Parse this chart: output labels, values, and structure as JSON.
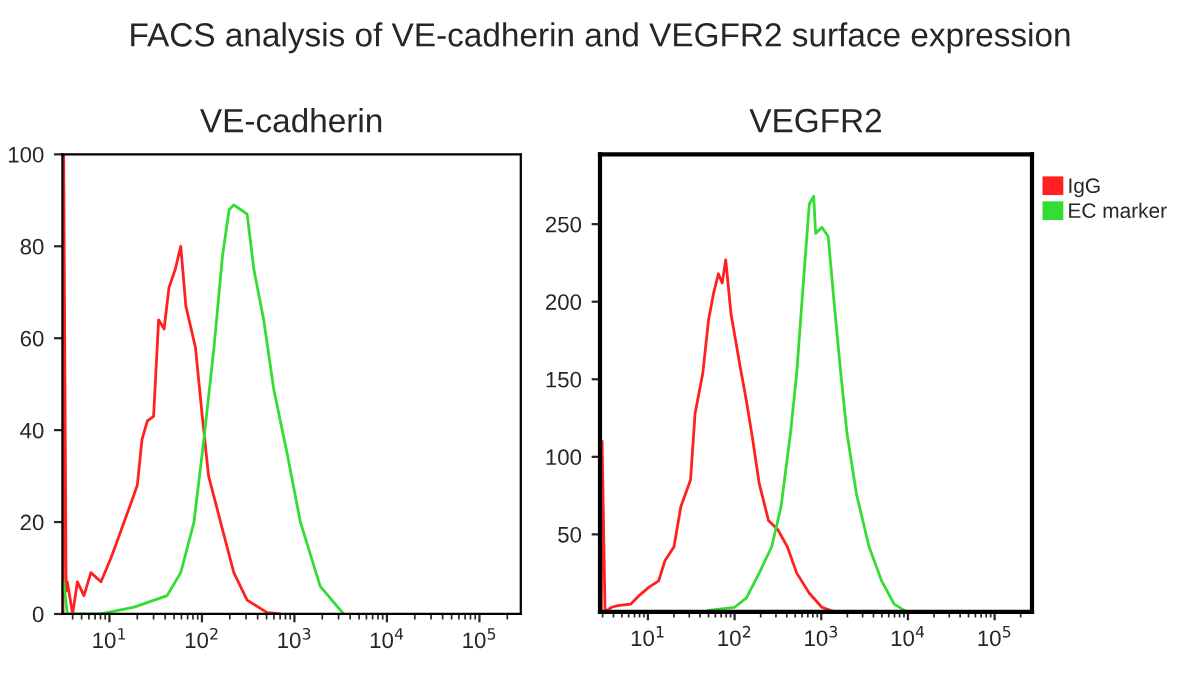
{
  "chart_data": [
    {
      "type": "line",
      "title": "VE-cadherin",
      "annotations": [
        "FACS analysis of VE-cadherin and VEGFR2 surface expression"
      ],
      "log": "x",
      "grid": false,
      "legend": false,
      "xlim": [
        3.1,
        280000
      ],
      "xticks": [
        {
          "value": 10,
          "label": "10$^{1}$"
        },
        {
          "value": 100,
          "label": "10$^{2}$"
        },
        {
          "value": 1000,
          "label": "10$^{3}$"
        },
        {
          "value": 10000,
          "label": "10$^{4}$"
        },
        {
          "value": 100000,
          "label": "10$^{5}$"
        }
      ],
      "ylim": [
        0,
        100
      ],
      "yticks": [
        0,
        20,
        40,
        60,
        80,
        100
      ],
      "series": [
        {
          "color": "#ff2020",
          "x": [
            3.15,
            3.2,
            3.4,
            3.5,
            4.0,
            4.5,
            5.3,
            6.3,
            8.1,
            10.3,
            12.2,
            14.4,
            17,
            20,
            22.5,
            25.7,
            30,
            34,
            39,
            44,
            51.5,
            59,
            67,
            85,
            102,
            118,
            159,
            221,
            308,
            507,
            706
          ],
          "values": [
            0,
            100,
            5,
            7,
            0,
            7,
            4,
            9,
            7,
            12,
            16,
            20,
            24,
            28,
            38,
            42,
            43,
            64,
            62,
            71,
            75,
            80,
            67,
            58,
            42,
            30,
            20,
            9,
            3,
            0.3,
            0
          ]
        },
        {
          "color": "#33dd33",
          "x": [
            3.2,
            3.5,
            8.1,
            18.5,
            42,
            59,
            82,
            105,
            135,
            167,
            197,
            221,
            261,
            308,
            364,
            465,
            596,
            832,
            1160,
            1900,
            3400
          ],
          "values": [
            7,
            0,
            0,
            1.5,
            4,
            9,
            20,
            38,
            58,
            78,
            88,
            89,
            88,
            87,
            75,
            64,
            49,
            35,
            20,
            6,
            0
          ]
        }
      ]
    },
    {
      "type": "line",
      "title": "VEGFR2",
      "log": "x",
      "grid": false,
      "legend": "top right",
      "xlim": [
        2.8,
        270000
      ],
      "xticks": [
        {
          "value": 10,
          "label": "10$^{1}$"
        },
        {
          "value": 100,
          "label": "10$^{2}$"
        },
        {
          "value": 1000,
          "label": "10$^{3}$"
        },
        {
          "value": 10000,
          "label": "10$^{4}$"
        },
        {
          "value": 100000,
          "label": "10$^{5}$"
        }
      ],
      "ylim": [
        0,
        295
      ],
      "yticks": [
        50,
        100,
        150,
        200,
        250
      ],
      "series": [
        {
          "name": "IgG",
          "color": "#ff2020",
          "x": [
            2.9,
            2.96,
            3.2,
            3.8,
            4.5,
            6.3,
            8.1,
            10.3,
            13.3,
            15.7,
            20,
            24,
            31,
            35,
            43,
            50,
            57,
            65,
            72,
            79,
            91,
            116,
            137,
            162,
            192,
            246,
            316,
            406,
            521,
            728,
            1016,
            1420
          ],
          "values": [
            0,
            110,
            0,
            3,
            4,
            5,
            11,
            16,
            20,
            33,
            42,
            68,
            85,
            128,
            154,
            188,
            205,
            218,
            212,
            227,
            192,
            158,
            136,
            111,
            83,
            59,
            53,
            42,
            25,
            12,
            3,
            0
          ]
        },
        {
          "name": "EC marker",
          "color": "#33dd33",
          "x": [
            50,
            100,
            137,
            192,
            268,
            344,
            441,
            521,
            617,
            728,
            818,
            861,
            1016,
            1202,
            1420,
            1679,
            1983,
            2546,
            3557,
            4966,
            6935,
            9680
          ],
          "values": [
            1,
            3,
            9,
            25,
            42,
            68,
            115,
            154,
            210,
            263,
            268,
            244,
            248,
            242,
            197,
            154,
            115,
            76,
            42,
            20,
            5,
            0
          ]
        }
      ]
    }
  ]
}
